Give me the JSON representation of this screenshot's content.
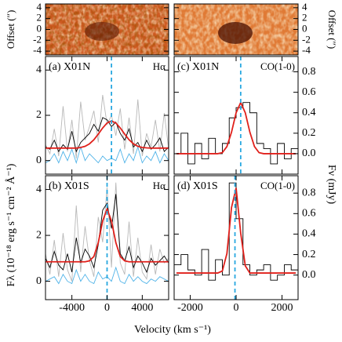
{
  "x_label": "Velocity (km s⁻¹)",
  "chart_data": [
    {
      "type": "image",
      "y_label": "Offset (″)",
      "ylim": [
        -4.7,
        4.7
      ],
      "yticks": [
        4,
        2,
        0,
        -2,
        -4
      ],
      "y_axis_side": "left"
    },
    {
      "type": "image",
      "y_label": "Offset (″)",
      "ylim": [
        -4.7,
        4.7
      ],
      "yticks": [
        4,
        2,
        0,
        -2,
        -4
      ],
      "y_axis_side": "right"
    },
    {
      "type": "spectrum",
      "label": "(a) X01N",
      "line_label": "Hα",
      "y_label": "Fλ (10⁻¹⁸ erg s⁻¹ cm⁻² Å⁻¹)",
      "y_axis_side": "left",
      "show_xtick_labels": false,
      "xlim": [
        -7000,
        7000
      ],
      "ylim": [
        -0.6,
        4.6
      ],
      "xticks": [
        -4000,
        0,
        4000
      ],
      "yticks": [
        0,
        2,
        4
      ],
      "marker_x": 500,
      "marker_color": "#29a8e0",
      "x": [
        -7000,
        -6500,
        -6000,
        -5500,
        -5000,
        -4500,
        -4000,
        -3500,
        -3000,
        -2500,
        -2000,
        -1500,
        -1000,
        -500,
        0,
        500,
        1000,
        1500,
        2000,
        2500,
        3000,
        3500,
        4000,
        4500,
        5000,
        5500,
        6000,
        6500,
        7000
      ],
      "series": [
        {
          "color": "#b8b8b8",
          "step": false,
          "values": [
            0.7,
            0.3,
            1.4,
            0.2,
            2.4,
            0.4,
            1.8,
            0.1,
            2.6,
            0.9,
            1.5,
            2.2,
            0.8,
            2.9,
            1.6,
            2.0,
            1.1,
            2.3,
            0.5,
            1.9,
            0.3,
            2.7,
            0.2,
            1.2,
            0.6,
            1.8,
            0.4,
            2.1,
            0.5
          ]
        },
        {
          "color": "#4fb3e8",
          "step": false,
          "values": [
            -0.1,
            0.0,
            0.3,
            -0.1,
            0.4,
            0.0,
            0.5,
            -0.1,
            0.6,
            0.0,
            0.3,
            0.1,
            -0.1,
            0.2,
            0.0,
            0.1,
            0.0,
            0.5,
            -0.1,
            0.3,
            0.0,
            0.6,
            -0.1,
            0.2,
            0.0,
            0.4,
            -0.1,
            0.3,
            0.0
          ]
        },
        {
          "color": "#000000",
          "step": false,
          "values": [
            0.6,
            0.5,
            0.9,
            0.4,
            0.7,
            0.5,
            1.3,
            0.4,
            0.8,
            1.0,
            1.2,
            1.6,
            1.3,
            1.9,
            1.8,
            1.5,
            1.7,
            1.2,
            0.9,
            1.4,
            0.6,
            0.8,
            0.4,
            0.9,
            0.5,
            0.7,
            1.0,
            0.4,
            0.6
          ]
        },
        {
          "color": "#e0201b",
          "step": false,
          "values": [
            0.55,
            0.55,
            0.55,
            0.55,
            0.55,
            0.55,
            0.55,
            0.55,
            0.58,
            0.63,
            0.74,
            0.92,
            1.17,
            1.44,
            1.66,
            1.75,
            1.66,
            1.44,
            1.17,
            0.92,
            0.74,
            0.63,
            0.58,
            0.56,
            0.55,
            0.55,
            0.55,
            0.55,
            0.55
          ]
        }
      ]
    },
    {
      "type": "spectrum",
      "label": "(b) X01S",
      "line_label": "Hα",
      "y_axis_side": "left",
      "show_xtick_labels": true,
      "xlim": [
        -7000,
        7000
      ],
      "ylim": [
        -0.8,
        4.6
      ],
      "xticks": [
        -4000,
        0,
        4000
      ],
      "yticks": [
        0,
        2,
        4
      ],
      "marker_x": 0,
      "marker_color": "#29a8e0",
      "x": [
        -7000,
        -6500,
        -6000,
        -5500,
        -5000,
        -4500,
        -4000,
        -3500,
        -3000,
        -2500,
        -2000,
        -1500,
        -1000,
        -500,
        0,
        500,
        1000,
        1500,
        2000,
        2500,
        3000,
        3500,
        4000,
        4500,
        5000,
        5500,
        6000,
        6500,
        7000
      ],
      "series": [
        {
          "color": "#b8b8b8",
          "step": false,
          "values": [
            1.2,
            0.3,
            1.8,
            0.2,
            2.1,
            0.5,
            0.0,
            3.3,
            0.4,
            2.4,
            0.9,
            0.2,
            2.8,
            1.7,
            4.1,
            0.6,
            4.3,
            0.8,
            0.3,
            2.6,
            0.2,
            1.9,
            0.4,
            0.1,
            1.6,
            0.3,
            1.4,
            0.8,
            1.0
          ]
        },
        {
          "color": "#4fb3e8",
          "step": false,
          "values": [
            0.0,
            0.1,
            0.2,
            -0.1,
            0.3,
            0.0,
            -0.1,
            0.5,
            0.0,
            0.3,
            0.0,
            -0.1,
            0.4,
            0.1,
            0.2,
            0.0,
            0.6,
            0.0,
            -0.1,
            0.3,
            0.0,
            0.2,
            0.0,
            -0.1,
            0.1,
            0.0,
            0.2,
            0.1,
            0.0
          ]
        },
        {
          "color": "#000000",
          "step": false,
          "values": [
            1.0,
            0.6,
            1.3,
            0.7,
            0.5,
            1.2,
            0.4,
            1.9,
            0.8,
            1.4,
            1.1,
            0.6,
            1.6,
            3.1,
            3.4,
            2.3,
            3.8,
            1.2,
            0.9,
            1.5,
            0.6,
            1.1,
            0.8,
            0.4,
            1.0,
            0.7,
            0.9,
            1.1,
            0.8
          ]
        },
        {
          "color": "#e0201b",
          "step": false,
          "values": [
            0.85,
            0.85,
            0.85,
            0.85,
            0.85,
            0.85,
            0.85,
            0.85,
            0.85,
            0.85,
            0.89,
            1.08,
            1.68,
            2.63,
            3.15,
            2.63,
            1.68,
            1.08,
            0.89,
            0.85,
            0.85,
            0.85,
            0.85,
            0.85,
            0.85,
            0.85,
            0.85,
            0.85,
            0.85
          ]
        }
      ]
    },
    {
      "type": "spectrum",
      "label": "(c) X01N",
      "line_label": "CO(1-0)",
      "y_label": "Fν (mJy)",
      "y_axis_side": "right",
      "show_xtick_labels": false,
      "xlim": [
        -2700,
        2700
      ],
      "ylim": [
        -0.2,
        0.95
      ],
      "xticks": [
        -2000,
        0,
        2000
      ],
      "yticks": [
        0.8,
        0.6,
        0.4,
        0.2,
        {
          "value": 0,
          "label": "0.0"
        }
      ],
      "marker_x": 200,
      "marker_color": "#29a8e0",
      "x": [
        -2550,
        -2250,
        -1950,
        -1650,
        -1350,
        -1050,
        -750,
        -450,
        -150,
        150,
        450,
        750,
        1050,
        1350,
        1650,
        1950,
        2250,
        2550
      ],
      "series": [
        {
          "color": "#000000",
          "step": true,
          "values": [
            0.0,
            0.2,
            -0.1,
            0.1,
            -0.05,
            0.15,
            0.0,
            0.1,
            0.35,
            0.45,
            0.5,
            0.4,
            0.1,
            0.05,
            -0.1,
            0.1,
            -0.05,
            0.05
          ]
        },
        {
          "color": "#e0201b",
          "step": false,
          "x": [
            -2600,
            -2400,
            -2200,
            -2000,
            -1800,
            -1600,
            -1400,
            -1200,
            -1000,
            -800,
            -600,
            -400,
            -200,
            0,
            200,
            400,
            600,
            800,
            1000,
            1200,
            1400,
            1600,
            1800,
            2000,
            2200,
            2400,
            2600
          ],
          "values": [
            0,
            0,
            0,
            0,
            0,
            0,
            0,
            0,
            0,
            0,
            0.01,
            0.07,
            0.21,
            0.4,
            0.5,
            0.4,
            0.21,
            0.07,
            0.01,
            0,
            0,
            0,
            0,
            0,
            0,
            0,
            0
          ]
        }
      ]
    },
    {
      "type": "spectrum",
      "label": "(d) X01S",
      "line_label": "CO(1-0)",
      "y_axis_side": "right",
      "show_xtick_labels": true,
      "xlim": [
        -2700,
        2700
      ],
      "ylim": [
        -0.24,
        0.97
      ],
      "xticks": [
        -2000,
        0,
        2000
      ],
      "yticks": [
        0.8,
        0.6,
        0.4,
        0.2,
        {
          "value": 0,
          "label": "0.0"
        }
      ],
      "marker_x": -50,
      "marker_color": "#29a8e0",
      "x": [
        -2550,
        -2250,
        -1950,
        -1650,
        -1350,
        -1050,
        -750,
        -450,
        -150,
        150,
        450,
        750,
        1050,
        1350,
        1650,
        1950,
        2250,
        2550
      ],
      "series": [
        {
          "color": "#000000",
          "step": true,
          "values": [
            0.1,
            0.2,
            0.05,
            0.0,
            0.25,
            -0.05,
            0.15,
            0.0,
            0.9,
            0.55,
            0.1,
            0.0,
            0.05,
            0.1,
            -0.05,
            0.0,
            0.1,
            0.05
          ]
        },
        {
          "color": "#e0201b",
          "step": false,
          "x": [
            -2600,
            -2400,
            -2200,
            -2000,
            -1800,
            -1600,
            -1400,
            -1200,
            -1000,
            -800,
            -600,
            -400,
            -200,
            0,
            200,
            400,
            600,
            800,
            1000,
            1200,
            1400,
            1600,
            1800,
            2000,
            2200,
            2400,
            2600
          ],
          "values": [
            0.02,
            0.02,
            0.02,
            0.02,
            0.02,
            0.02,
            0.02,
            0.02,
            0.02,
            0.02,
            0.04,
            0.21,
            0.66,
            0.85,
            0.41,
            0.09,
            0.02,
            0.02,
            0.02,
            0.02,
            0.02,
            0.02,
            0.02,
            0.02,
            0.02,
            0.02,
            0.02
          ]
        }
      ]
    }
  ]
}
